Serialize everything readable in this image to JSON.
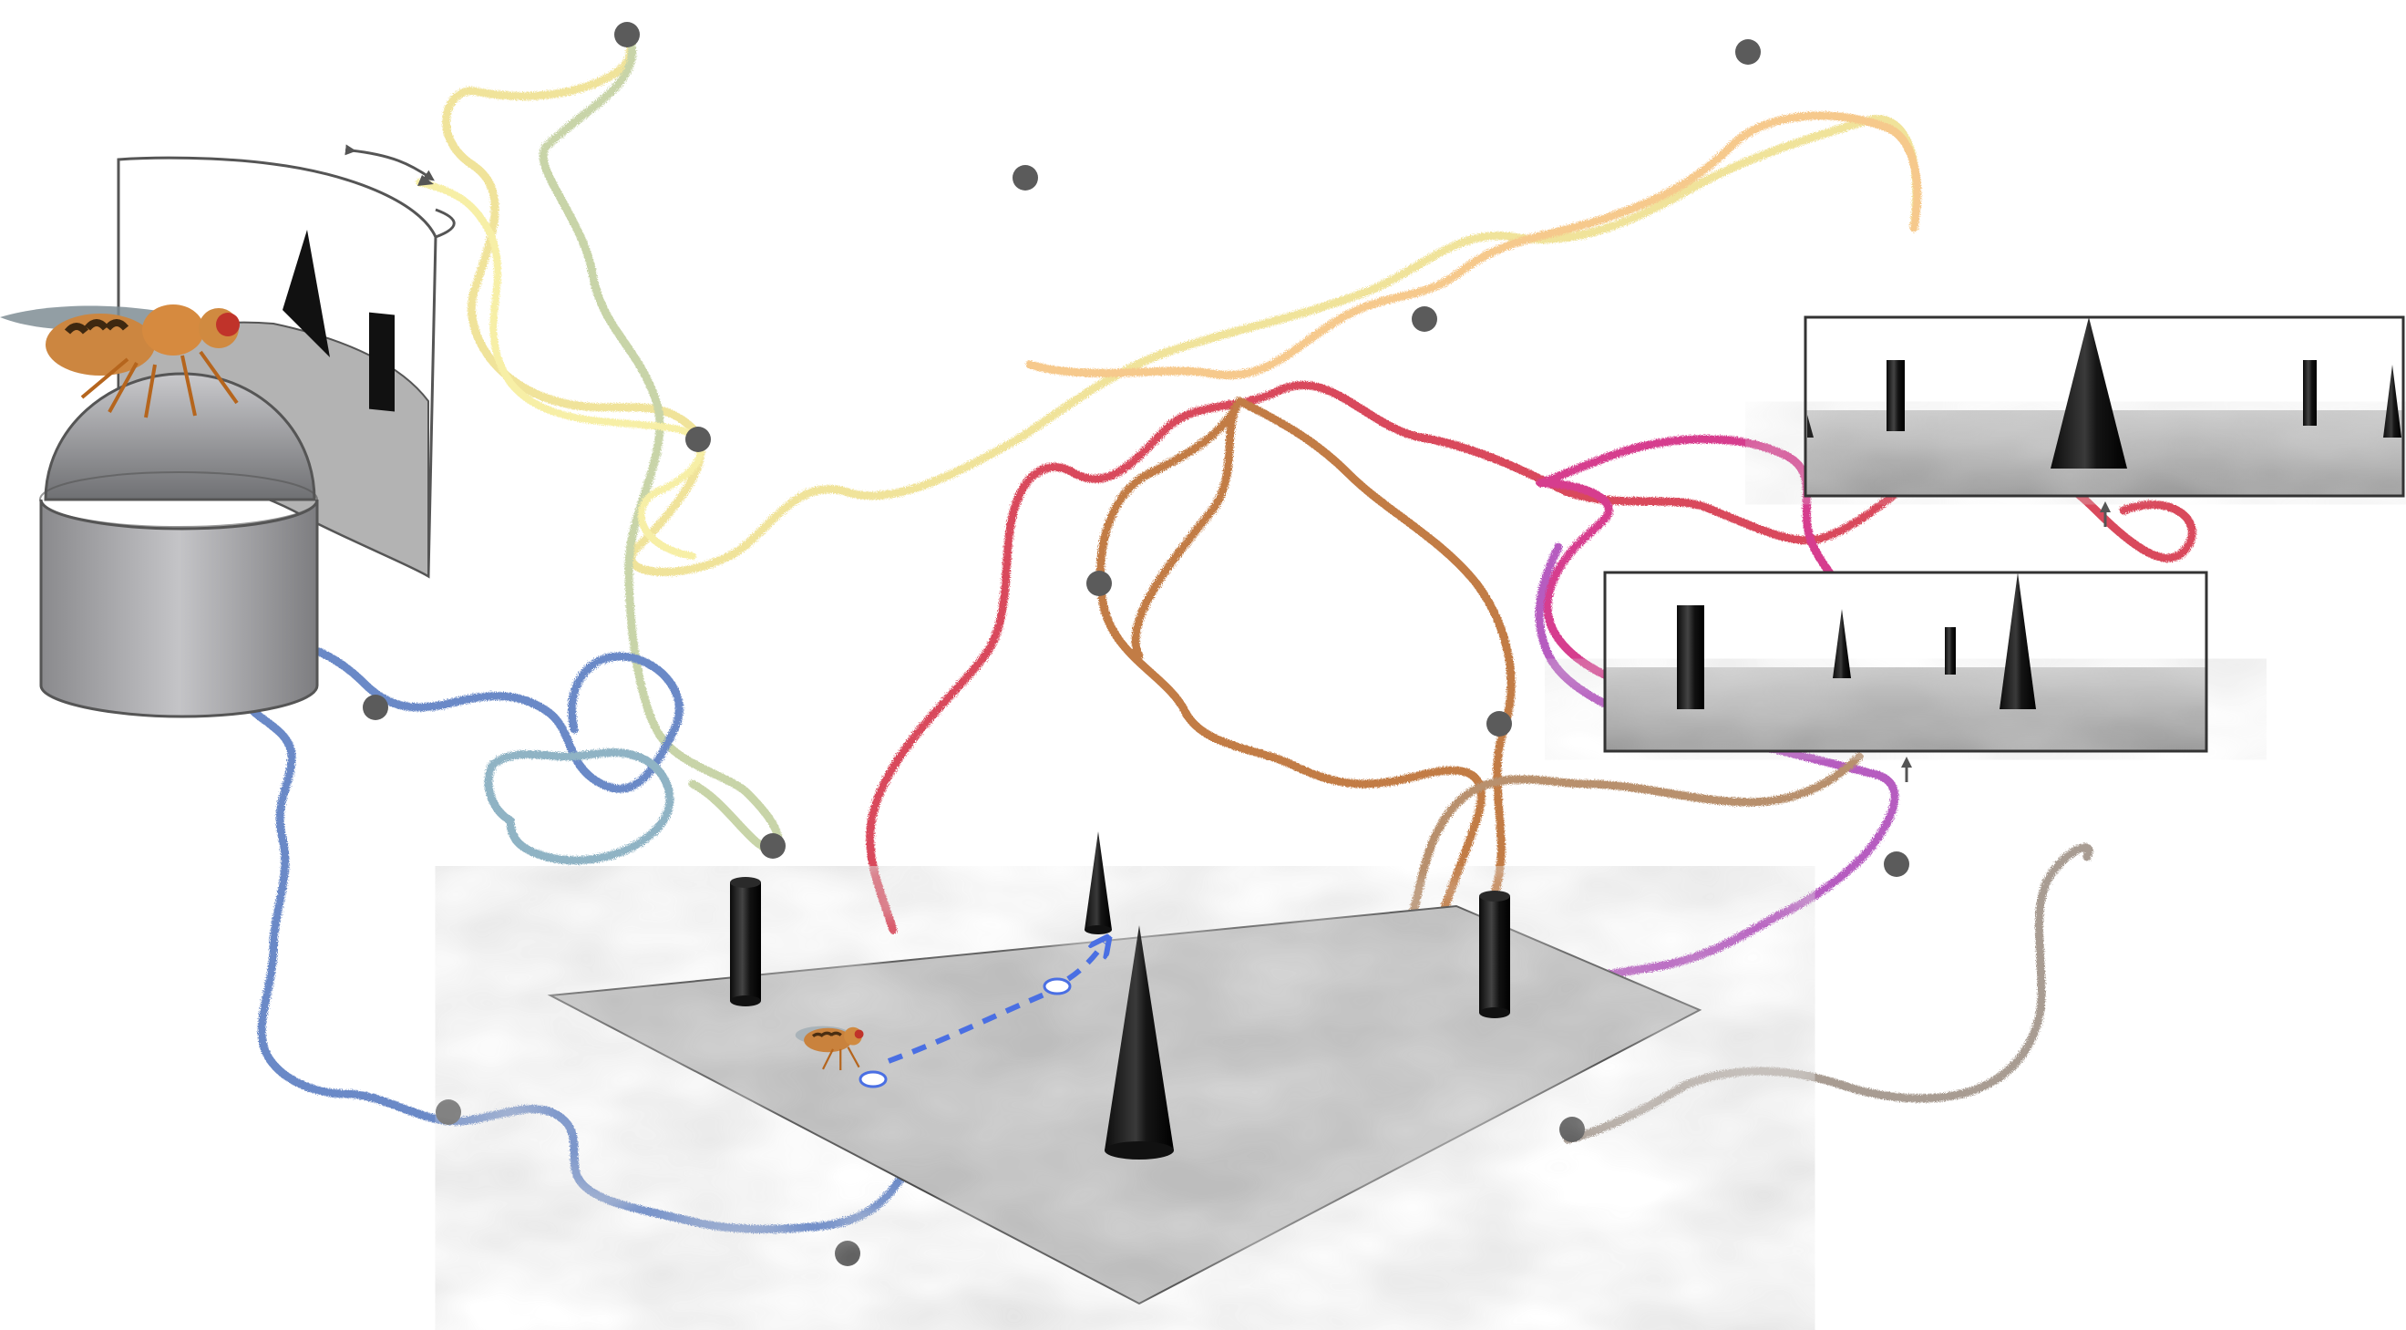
{
  "figure": {
    "description_free": true,
    "colors": {
      "yellow": "#f3e79a",
      "sage": "#c9d5a9",
      "lightYellow": "#f6efa0",
      "peach": "#f7c98a",
      "red": "#d94a5c",
      "copper": "#c27b45",
      "magenta": "#d63d8e",
      "purple": "#b65bc0",
      "blue": "#6a89c7",
      "teal": "#8fb3c4",
      "grey": "#a89c92",
      "path": "#4a6fe3",
      "cone": "#1b1b1b",
      "arena": "#bdbdbd",
      "dot": "#5b5b5b"
    },
    "icons": [
      "fly-icon",
      "cone-landmark-icon",
      "cylinder-landmark-icon",
      "arrow-icon"
    ]
  }
}
